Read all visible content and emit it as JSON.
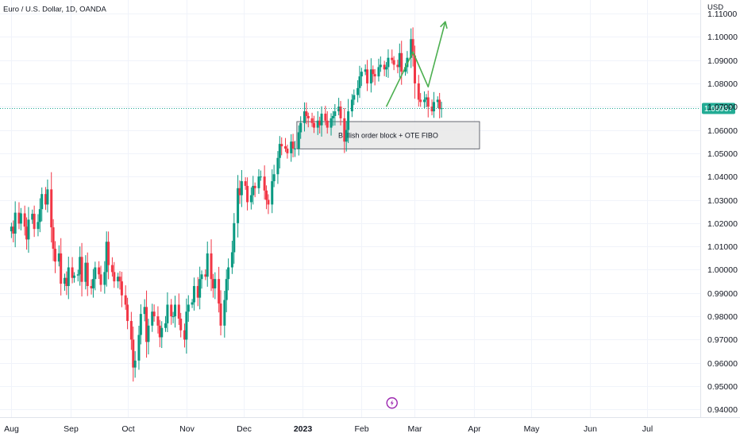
{
  "chart_data": {
    "type": "candlestick",
    "title": "Euro / U.S. Dollar, 1D, OANDA",
    "currency_label": "USD",
    "last_price": "1.06937",
    "ylim": [
      0.9367,
      1.1158
    ],
    "yticks": [
      "1.11000",
      "1.10000",
      "1.09000",
      "1.08000",
      "1.07000",
      "1.06000",
      "1.05000",
      "1.04000",
      "1.03000",
      "1.02000",
      "1.01000",
      "1.00000",
      "0.99000",
      "0.98000",
      "0.97000",
      "0.96000",
      "0.95000",
      "0.94000"
    ],
    "x_range_days": [
      -6,
      362
    ],
    "xticks": [
      {
        "label": "Aug",
        "day": 0
      },
      {
        "label": "Sep",
        "day": 31
      },
      {
        "label": "Oct",
        "day": 61
      },
      {
        "label": "Nov",
        "day": 92
      },
      {
        "label": "Dec",
        "day": 122
      },
      {
        "label": "2023",
        "day": 153,
        "bold": true
      },
      {
        "label": "Feb",
        "day": 184
      },
      {
        "label": "Mar",
        "day": 212
      },
      {
        "label": "Apr",
        "day": 243
      },
      {
        "label": "May",
        "day": 273
      },
      {
        "label": "Jun",
        "day": 304
      },
      {
        "label": "Jul",
        "day": 334
      }
    ],
    "colors": {
      "up": "#089981",
      "down": "#f23645",
      "projection": "#4caf50",
      "price_line": "#22ab94",
      "grid": "#f0f3fa",
      "axis_text": "#131722",
      "box_fill": "#e8e8e8",
      "box_border": "#434651",
      "alert_icon": "#9c27b0"
    },
    "annotation": {
      "text": "Bullish order block + OTE FIBO",
      "y_top": 1.0636,
      "y_bottom": 1.0519,
      "day_start": 150,
      "day_end": 246
    },
    "projection_path": [
      [
        197,
        1.07
      ],
      [
        211,
        1.0935
      ],
      [
        219,
        1.0785
      ],
      [
        228,
        1.1065
      ]
    ],
    "alert_icon": {
      "name": "lightning-alert-icon",
      "day": 200,
      "y": 0.9428
    },
    "series": [
      {
        "closes": [
          1.0185,
          1.0155,
          1.0245,
          1.0198,
          1.0242,
          1.0185,
          1.013,
          1.0215,
          1.024,
          1.0175,
          1.0205,
          1.026,
          1.0325,
          1.028,
          1.0345,
          1.0182,
          1.009,
          1.0035,
          1.007,
          0.994,
          0.9965,
          0.993,
          1.001,
          0.9965,
          0.9975,
          0.998,
          1.0055,
          0.9948,
          1.003,
          0.993,
          0.992,
          0.996,
          1.001,
          0.998,
          0.9935,
          0.999,
          1.012,
          1.002,
          0.999,
          0.995,
          0.997,
          0.995,
          0.989,
          0.985,
          0.978,
          0.97,
          0.958,
          0.961,
          0.972,
          0.981,
          0.984,
          0.969,
          0.976,
          0.982,
          0.98,
          0.976,
          0.971,
          0.975,
          0.977,
          0.985,
          0.98,
          0.98,
          0.985,
          0.979,
          0.974,
          0.97,
          0.982,
          0.985,
          0.986,
          0.993,
          0.988,
          0.996,
          0.998,
          0.997,
          1.007,
          0.996,
          0.992,
          0.996,
          0.9855,
          0.976,
          0.987,
          0.996,
          1.001,
          1.0075,
          1.02,
          1.035,
          1.032,
          1.038,
          1.036,
          1.029,
          1.032,
          1.036,
          1.035,
          1.04,
          1.04,
          1.034,
          1.03,
          1.028,
          1.038,
          1.041,
          1.048,
          1.054,
          1.053,
          1.052,
          1.05,
          1.055,
          1.052,
          1.052,
          1.059,
          1.063,
          1.068,
          1.066,
          1.065,
          1.063,
          1.061,
          1.064,
          1.062,
          1.067,
          1.064,
          1.061,
          1.065,
          1.066,
          1.068,
          1.07,
          1.065,
          1.055,
          1.06,
          1.068,
          1.073,
          1.075,
          1.078,
          1.083,
          1.085,
          1.086,
          1.08,
          1.086,
          1.084,
          1.083,
          1.087,
          1.088,
          1.086,
          1.087,
          1.091,
          1.09,
          1.088,
          1.087,
          1.093,
          1.085,
          1.087,
          1.091,
          1.099,
          1.092,
          1.08,
          1.073,
          1.072,
          1.073,
          1.074,
          1.07,
          1.068,
          1.072,
          1.073,
          1.069,
          1.0694
        ]
      }
    ]
  }
}
